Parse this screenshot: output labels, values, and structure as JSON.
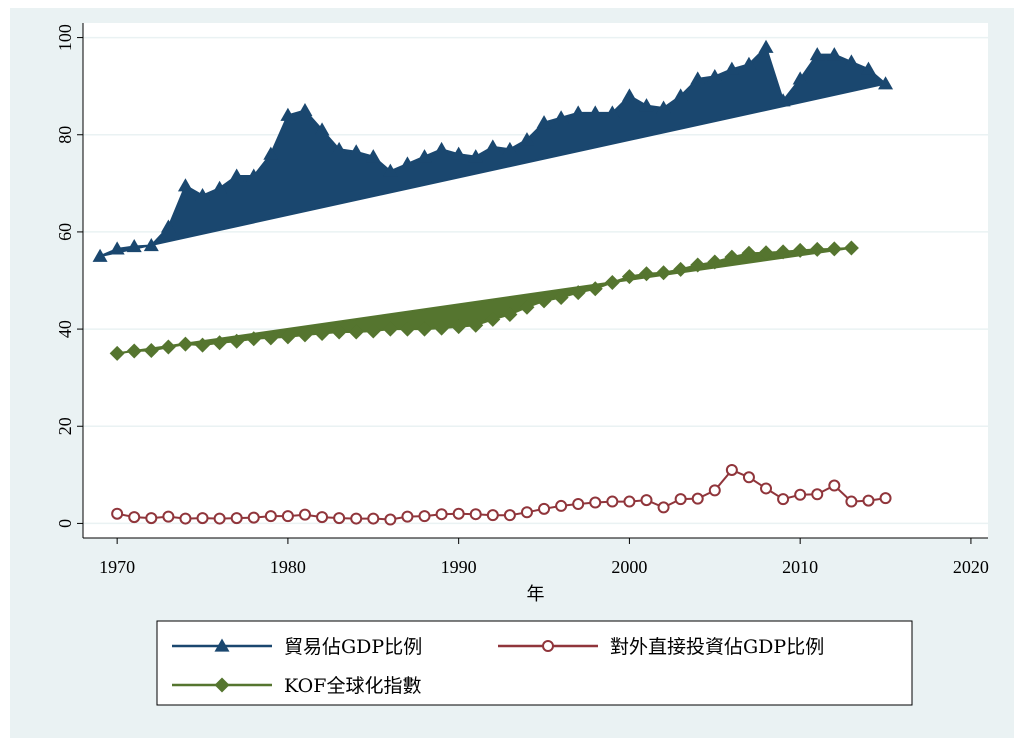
{
  "chart_data": {
    "type": "line",
    "title": "",
    "xlabel": "年",
    "ylabel": "",
    "xlim": [
      1968,
      2021
    ],
    "ylim": [
      -3,
      103
    ],
    "x_ticks": [
      1970,
      1980,
      1990,
      2000,
      2010,
      2020
    ],
    "y_ticks": [
      0,
      20,
      40,
      60,
      80,
      100
    ],
    "grid": "horizontal",
    "legend_position": "bottom",
    "series": [
      {
        "name": "貿易佔GDP比例",
        "color": "#1a476f",
        "marker": "triangle",
        "fill": "area-to-linear-trend",
        "x": [
          1969,
          1970,
          1971,
          1972,
          1973,
          1974,
          1975,
          1976,
          1977,
          1978,
          1979,
          1980,
          1981,
          1982,
          1983,
          1984,
          1985,
          1986,
          1987,
          1988,
          1989,
          1990,
          1991,
          1992,
          1993,
          1994,
          1995,
          1996,
          1997,
          1998,
          1999,
          2000,
          2001,
          2002,
          2003,
          2004,
          2005,
          2006,
          2007,
          2008,
          2009,
          2010,
          2011,
          2012,
          2013,
          2014,
          2015
        ],
        "values": [
          55,
          56.5,
          57,
          57.2,
          61,
          69.5,
          67.5,
          69,
          71.5,
          71.5,
          76,
          84,
          85,
          81,
          77,
          76.5,
          75.5,
          72.5,
          74,
          75.5,
          77,
          76,
          75.5,
          77.5,
          77,
          79,
          82.5,
          83.5,
          84.5,
          84.5,
          84.5,
          88,
          86,
          85.5,
          88,
          91.5,
          92,
          93.5,
          94.5,
          98,
          87,
          91.5,
          96.5,
          96.5,
          95,
          93.5,
          90.5
        ]
      },
      {
        "name": "KOF全球化指數",
        "color": "#55752f",
        "marker": "diamond",
        "fill": "area-to-linear-trend",
        "x": [
          1970,
          1971,
          1972,
          1973,
          1974,
          1975,
          1976,
          1977,
          1978,
          1979,
          1980,
          1981,
          1982,
          1983,
          1984,
          1985,
          1986,
          1987,
          1988,
          1989,
          1990,
          1991,
          1992,
          1993,
          1994,
          1995,
          1996,
          1997,
          1998,
          1999,
          2000,
          2001,
          2002,
          2003,
          2004,
          2005,
          2006,
          2007,
          2008,
          2009,
          2010,
          2011,
          2012,
          2013
        ],
        "values": [
          35,
          35.5,
          35.6,
          36.3,
          36.9,
          36.7,
          37.2,
          37.5,
          38,
          38.2,
          38.4,
          38.8,
          39.1,
          39.4,
          39.4,
          39.6,
          40,
          40,
          40,
          40.2,
          40.5,
          40.8,
          42,
          43,
          44.5,
          45.8,
          46.5,
          47.5,
          48.3,
          49.6,
          50.8,
          51.4,
          51.6,
          52.3,
          53.2,
          53.8,
          54.8,
          55.6,
          55.7,
          55.9,
          56.2,
          56.4,
          56.5,
          56.7
        ]
      },
      {
        "name": "對外直接投資佔GDP比例",
        "color": "#90353b",
        "marker": "hollow-circle",
        "fill": "none",
        "x": [
          1970,
          1971,
          1972,
          1973,
          1974,
          1975,
          1976,
          1977,
          1978,
          1979,
          1980,
          1981,
          1982,
          1983,
          1984,
          1985,
          1986,
          1987,
          1988,
          1989,
          1990,
          1991,
          1992,
          1993,
          1994,
          1995,
          1996,
          1997,
          1998,
          1999,
          2000,
          2001,
          2002,
          2003,
          2004,
          2005,
          2006,
          2007,
          2008,
          2009,
          2010,
          2011,
          2012,
          2013,
          2014,
          2015
        ],
        "values": [
          2,
          1.3,
          1.1,
          1.4,
          1,
          1.1,
          1,
          1.1,
          1.2,
          1.5,
          1.5,
          1.8,
          1.3,
          1.1,
          1,
          1,
          0.8,
          1.4,
          1.5,
          1.9,
          2,
          1.9,
          1.7,
          1.7,
          2.3,
          3,
          3.6,
          4,
          4.3,
          4.5,
          4.5,
          4.8,
          3.3,
          5,
          5.1,
          6.8,
          11,
          9.5,
          7.2,
          5,
          5.9,
          6,
          7.8,
          4.5,
          4.7,
          5.2
        ]
      }
    ]
  }
}
